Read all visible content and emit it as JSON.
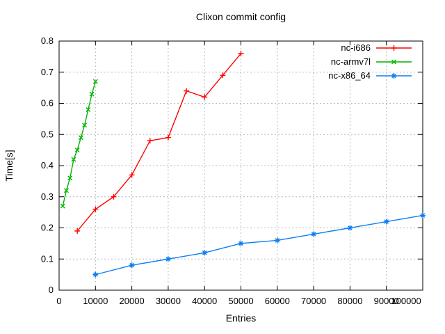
{
  "chart_data": {
    "type": "line",
    "title": "Clixon commit config",
    "xlabel": "Entries",
    "ylabel": "Time[s]",
    "xlim": [
      0,
      100000
    ],
    "ylim": [
      0,
      0.8
    ],
    "grid": true,
    "legend_position": "top-right-inside",
    "axis_color": "#000000",
    "grid_color": "#b8b8b8",
    "background_color": "#ffffff",
    "xticks": [
      {
        "value": 0,
        "label": "0"
      },
      {
        "value": 10000,
        "label": "10000"
      },
      {
        "value": 20000,
        "label": "20000"
      },
      {
        "value": 30000,
        "label": "30000"
      },
      {
        "value": 40000,
        "label": "40000"
      },
      {
        "value": 50000,
        "label": "50000"
      },
      {
        "value": 60000,
        "label": "60000"
      },
      {
        "value": 70000,
        "label": "70000"
      },
      {
        "value": 80000,
        "label": "80000"
      },
      {
        "value": 90000,
        "label": "90000"
      },
      {
        "value": 100000,
        "label": "100000"
      }
    ],
    "yticks": [
      {
        "value": 0.0,
        "label": "0"
      },
      {
        "value": 0.1,
        "label": "0.1"
      },
      {
        "value": 0.2,
        "label": "0.2"
      },
      {
        "value": 0.3,
        "label": "0.3"
      },
      {
        "value": 0.4,
        "label": "0.4"
      },
      {
        "value": 0.5,
        "label": "0.5"
      },
      {
        "value": 0.6,
        "label": "0.6"
      },
      {
        "value": 0.7,
        "label": "0.7"
      },
      {
        "value": 0.8,
        "label": "0.8"
      }
    ],
    "series": [
      {
        "name": "nc-i686",
        "color": "#ff0000",
        "marker": "plus",
        "x": [
          5000,
          10000,
          15000,
          20000,
          25000,
          30000,
          35000,
          40000,
          45000,
          50000
        ],
        "y": [
          0.19,
          0.26,
          0.3,
          0.37,
          0.48,
          0.49,
          0.64,
          0.62,
          0.69,
          0.76
        ]
      },
      {
        "name": "nc-armv7l",
        "color": "#00b400",
        "marker": "cross",
        "x": [
          1000,
          2000,
          3000,
          4000,
          5000,
          6000,
          7000,
          8000,
          9000,
          10000
        ],
        "y": [
          0.27,
          0.32,
          0.36,
          0.42,
          0.45,
          0.49,
          0.53,
          0.58,
          0.63,
          0.67
        ]
      },
      {
        "name": "nc-x86_64",
        "color": "#0e7ef2",
        "marker": "asterisk",
        "x": [
          10000,
          20000,
          30000,
          40000,
          50000,
          60000,
          70000,
          80000,
          90000,
          100000
        ],
        "y": [
          0.05,
          0.08,
          0.1,
          0.12,
          0.15,
          0.16,
          0.18,
          0.2,
          0.22,
          0.24
        ]
      }
    ]
  }
}
